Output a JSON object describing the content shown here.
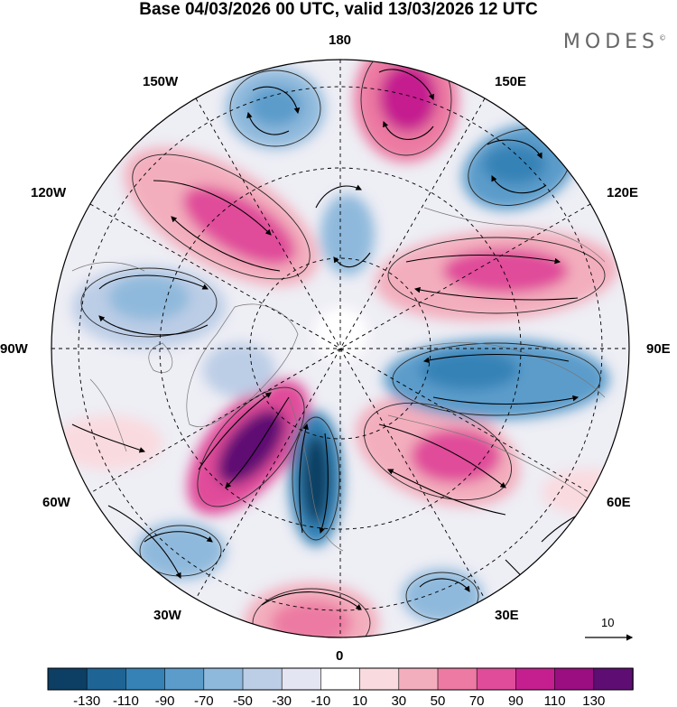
{
  "title": "Base 04/03/2026 00 UTC, valid 13/03/2026 12 UTC",
  "brand": "MODES",
  "brand_mark": "©",
  "longitude_labels": {
    "n180": "180",
    "e150": "150E",
    "e120": "120E",
    "e90": "90E",
    "e60": "60E",
    "e30": "30E",
    "zero": "0",
    "w30": "30W",
    "w60": "60W",
    "w90": "90W",
    "w120": "120W",
    "w150": "150W"
  },
  "vector_scale": "10",
  "colorbar": {
    "labels": [
      "-130",
      "-110",
      "-90",
      "-70",
      "-50",
      "-30",
      "-10",
      "10",
      "30",
      "50",
      "70",
      "90",
      "110",
      "130"
    ],
    "colors": [
      "#0c3f63",
      "#1e6596",
      "#3682b6",
      "#5b9ccb",
      "#8fb9dc",
      "#bccde6",
      "#e4e5f2",
      "#ffffff",
      "#f9dadf",
      "#f3aebd",
      "#ec7aa2",
      "#e04c9a",
      "#c51f8f",
      "#9a0e82",
      "#5e0e73"
    ]
  },
  "colors": {
    "neg_strong": "#1e5e8a",
    "neg_mid": "#5b9ccb",
    "neg_weak": "#bccde6",
    "pos_weak": "#f9dadf",
    "pos_mid": "#ec7aa2",
    "pos_strong": "#9a0e82"
  }
}
